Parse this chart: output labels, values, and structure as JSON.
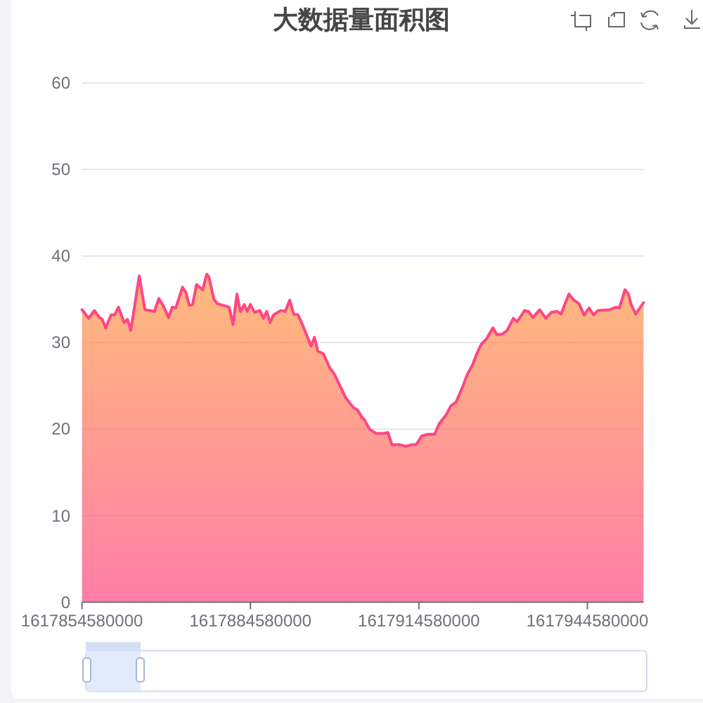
{
  "chart_data": {
    "type": "area",
    "title": "大数据量面积图",
    "x": [
      1617854580000,
      1617855780000,
      1617856780000,
      1617857680000,
      1617858180000,
      1617858780000,
      1617859780000,
      1617860380000,
      1617861080000,
      1617862080000,
      1617862680000,
      1617863280000,
      1617864780000,
      1617865780000,
      1617866680000,
      1617867480000,
      1617868280000,
      1617869180000,
      1617869980000,
      1617870680000,
      1617871280000,
      1617872480000,
      1617873080000,
      1617873680000,
      1617874280000,
      1617874980000,
      1617876080000,
      1617876780000,
      1617877180000,
      1617878080000,
      1617878680000,
      1617880780000,
      1617881480000,
      1617882180000,
      1617882780000,
      1617883480000,
      1617883980000,
      1617884580000,
      1617885280000,
      1617886280000,
      1617886880000,
      1617887480000,
      1617888080000,
      1617888680000,
      1617889980000,
      1617890780000,
      1617891580000,
      1617892280000,
      1617893080000,
      1617894080000,
      1617895380000,
      1617895980000,
      1617896580000,
      1617897580000,
      1617898680000,
      1617899480000,
      1617900380000,
      1617901580000,
      1617902880000,
      1617903680000,
      1617904480000,
      1617904880000,
      1617905780000,
      1617906980000,
      1617908280000,
      1617909080000,
      1617909780000,
      1617911180000,
      1617912280000,
      1617913280000,
      1617914080000,
      1617915080000,
      1617916180000,
      1617917380000,
      1617918180000,
      1617919480000,
      1617920280000,
      1617921180000,
      1617922380000,
      1617923180000,
      1617924180000,
      1617924880000,
      1617925680000,
      1617926580000,
      1617927780000,
      1617928480000,
      1617929480000,
      1617930280000,
      1617931380000,
      1617932080000,
      1617933380000,
      1617934080000,
      1617934880000,
      1617936080000,
      1617937180000,
      1617938180000,
      1617939180000,
      1617939880000,
      1617941280000,
      1617942180000,
      1617943080000,
      1617943980000,
      1617944880000,
      1617945680000,
      1617946480000,
      1617948580000,
      1617949680000,
      1617950280000,
      1617951280000,
      1617951880000,
      1617952380000,
      1617953180000,
      1617954580000
    ],
    "series": [
      {
        "color": "#ff4683",
        "values": [
          33.8,
          32.8,
          33.7,
          32.9,
          32.7,
          31.7,
          33.2,
          33.2,
          34.1,
          32.3,
          32.7,
          31.4,
          37.7,
          33.8,
          33.7,
          33.6,
          35.1,
          34.1,
          32.9,
          34.1,
          34.0,
          36.4,
          35.8,
          34.3,
          34.4,
          36.7,
          36.1,
          37.9,
          37.6,
          35.0,
          34.5,
          34.1,
          32.1,
          35.6,
          33.6,
          34.4,
          33.6,
          34.4,
          33.5,
          33.7,
          32.8,
          33.6,
          32.3,
          33.2,
          33.7,
          33.6,
          34.9,
          33.3,
          33.2,
          31.7,
          29.6,
          30.6,
          29.0,
          28.7,
          27.1,
          26.4,
          25.2,
          23.6,
          22.5,
          22.2,
          21.3,
          21.1,
          20.0,
          19.5,
          19.5,
          19.6,
          18.2,
          18.2,
          18.0,
          18.2,
          18.2,
          19.2,
          19.4,
          19.4,
          20.6,
          21.7,
          22.7,
          23.1,
          24.9,
          26.3,
          27.5,
          28.7,
          29.8,
          30.4,
          31.7,
          30.9,
          31.0,
          31.4,
          32.8,
          32.4,
          33.7,
          33.6,
          32.9,
          33.8,
          32.8,
          33.5,
          33.6,
          33.3,
          35.6,
          34.9,
          34.5,
          33.2,
          34.0,
          33.2,
          33.7,
          33.8,
          34.1,
          34.0,
          36.1,
          35.6,
          34.4,
          33.3,
          34.6
        ]
      }
    ],
    "xlim": [
      1617854580000,
      1617954580000
    ],
    "xticks": [
      1617854580000,
      1617884580000,
      1617914580000,
      1617944580000
    ],
    "ylim": [
      0,
      60
    ],
    "yticks": [
      0,
      10,
      20,
      30,
      40,
      50,
      60
    ],
    "grid": "y"
  }
}
